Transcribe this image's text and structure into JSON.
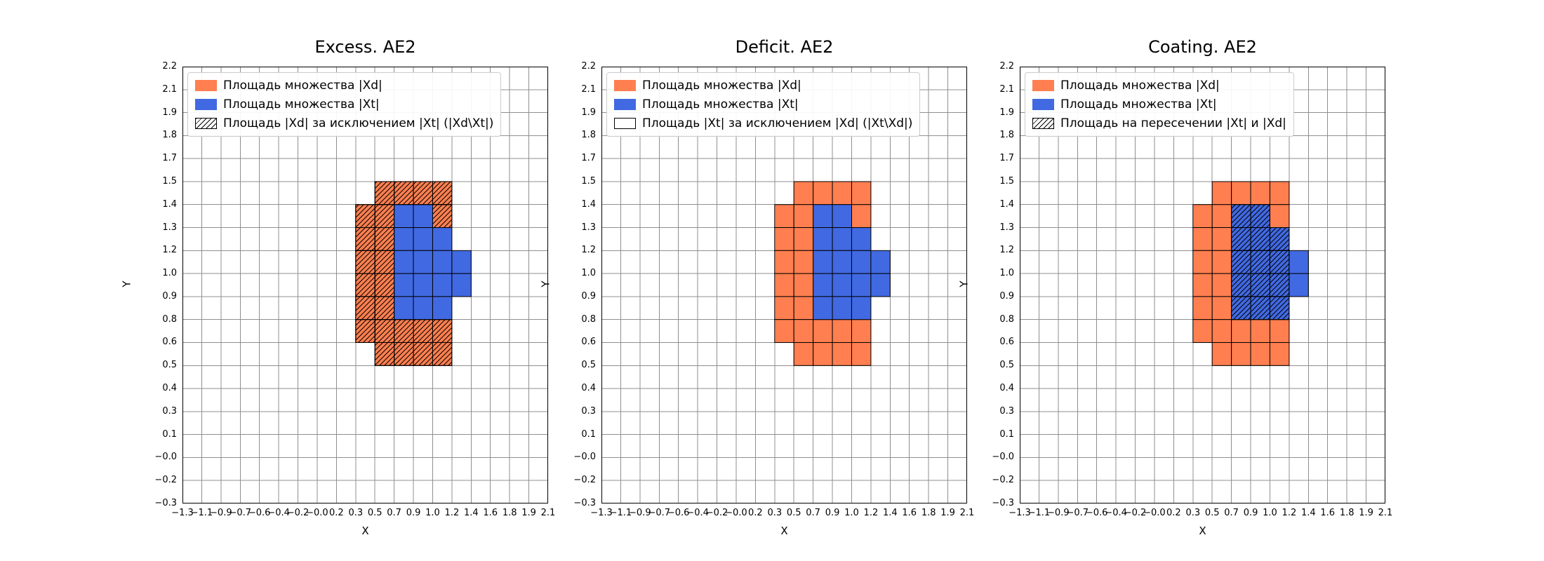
{
  "colors": {
    "set_xd": "#FF7F50",
    "set_xt": "#4169E1",
    "grid_line": "#8f8f8f",
    "cell_edge": "#000000",
    "hatch_line": "#000000",
    "legend_edge": "#cccccc",
    "background": "#ffffff"
  },
  "chart_data": [
    {
      "type": "heatmap",
      "title": "Excess. AE2",
      "xlabel": "X",
      "ylabel": "Y",
      "grid": true,
      "legend_position": "upper left",
      "x_ticks": [
        "−1.3",
        "−1.1",
        "−0.9",
        "−0.7",
        "−0.6",
        "−0.4",
        "−0.2",
        "−0.0",
        "0.2",
        "0.3",
        "0.5",
        "0.7",
        "0.9",
        "1.0",
        "1.2",
        "1.4",
        "1.6",
        "1.8",
        "1.9",
        "2.1"
      ],
      "y_ticks": [
        "2.2",
        "2.1",
        "1.9",
        "1.8",
        "1.7",
        "1.5",
        "1.4",
        "1.3",
        "1.2",
        "1.0",
        "0.9",
        "0.8",
        "0.6",
        "0.5",
        "0.4",
        "0.3",
        "0.1",
        "−0.0",
        "−0.2",
        "−0.3"
      ],
      "legend": [
        {
          "label": "Площадь множества |Xd|",
          "swatch": "orange"
        },
        {
          "label": "Площадь множества  |Xt|",
          "swatch": "blue"
        },
        {
          "label": "Площадь |Xd| за исключением |Xt| (|Xd\\Xt|)",
          "swatch": "hatch"
        }
      ],
      "cells": {
        "xd_orange": [
          [
            10,
            5
          ],
          [
            11,
            5
          ],
          [
            12,
            5
          ],
          [
            13,
            5
          ],
          [
            9,
            6
          ],
          [
            10,
            6
          ],
          [
            13,
            6
          ],
          [
            9,
            7
          ],
          [
            10,
            7
          ],
          [
            9,
            8
          ],
          [
            10,
            8
          ],
          [
            9,
            9
          ],
          [
            10,
            9
          ],
          [
            9,
            10
          ],
          [
            10,
            10
          ],
          [
            9,
            11
          ],
          [
            10,
            11
          ],
          [
            11,
            11
          ],
          [
            12,
            11
          ],
          [
            13,
            11
          ],
          [
            10,
            12
          ],
          [
            11,
            12
          ],
          [
            12,
            12
          ],
          [
            13,
            12
          ]
        ],
        "xt_blue": [
          [
            11,
            6
          ],
          [
            12,
            6
          ],
          [
            11,
            7
          ],
          [
            12,
            7
          ],
          [
            13,
            7
          ],
          [
            11,
            8
          ],
          [
            12,
            8
          ],
          [
            13,
            8
          ],
          [
            14,
            8
          ],
          [
            11,
            9
          ],
          [
            12,
            9
          ],
          [
            13,
            9
          ],
          [
            14,
            9
          ],
          [
            11,
            10
          ],
          [
            12,
            10
          ],
          [
            13,
            10
          ]
        ],
        "hatched": [
          [
            10,
            5
          ],
          [
            11,
            5
          ],
          [
            12,
            5
          ],
          [
            13,
            5
          ],
          [
            9,
            6
          ],
          [
            10,
            6
          ],
          [
            13,
            6
          ],
          [
            9,
            7
          ],
          [
            10,
            7
          ],
          [
            9,
            8
          ],
          [
            10,
            8
          ],
          [
            9,
            9
          ],
          [
            10,
            9
          ],
          [
            9,
            10
          ],
          [
            10,
            10
          ],
          [
            9,
            11
          ],
          [
            10,
            11
          ],
          [
            11,
            11
          ],
          [
            12,
            11
          ],
          [
            13,
            11
          ],
          [
            10,
            12
          ],
          [
            11,
            12
          ],
          [
            12,
            12
          ],
          [
            13,
            12
          ]
        ]
      }
    },
    {
      "type": "heatmap",
      "title": "Deficit. AE2",
      "xlabel": "X",
      "ylabel": "Y",
      "grid": true,
      "legend_position": "upper left",
      "x_ticks": [
        "−1.3",
        "−1.1",
        "−0.9",
        "−0.7",
        "−0.6",
        "−0.4",
        "−0.2",
        "−0.0",
        "0.2",
        "0.3",
        "0.5",
        "0.7",
        "0.9",
        "1.0",
        "1.2",
        "1.4",
        "1.6",
        "1.8",
        "1.9",
        "2.1"
      ],
      "y_ticks": [
        "2.2",
        "2.1",
        "1.9",
        "1.8",
        "1.7",
        "1.5",
        "1.4",
        "1.3",
        "1.2",
        "1.0",
        "0.9",
        "0.8",
        "0.6",
        "0.5",
        "0.4",
        "0.3",
        "0.1",
        "−0.0",
        "−0.2",
        "−0.3"
      ],
      "legend": [
        {
          "label": "Площадь множества |Xd|",
          "swatch": "orange"
        },
        {
          "label": "Площадь множества  |Xt|",
          "swatch": "blue"
        },
        {
          "label": "Площадь |Xt| за исключением |Xd| (|Xt\\Xd|)",
          "swatch": "plain"
        }
      ],
      "cells": {
        "xd_orange": [
          [
            10,
            5
          ],
          [
            11,
            5
          ],
          [
            12,
            5
          ],
          [
            13,
            5
          ],
          [
            9,
            6
          ],
          [
            10,
            6
          ],
          [
            13,
            6
          ],
          [
            9,
            7
          ],
          [
            10,
            7
          ],
          [
            9,
            8
          ],
          [
            10,
            8
          ],
          [
            9,
            9
          ],
          [
            10,
            9
          ],
          [
            9,
            10
          ],
          [
            10,
            10
          ],
          [
            9,
            11
          ],
          [
            10,
            11
          ],
          [
            11,
            11
          ],
          [
            12,
            11
          ],
          [
            13,
            11
          ],
          [
            10,
            12
          ],
          [
            11,
            12
          ],
          [
            12,
            12
          ],
          [
            13,
            12
          ]
        ],
        "xt_blue": [
          [
            11,
            6
          ],
          [
            12,
            6
          ],
          [
            11,
            7
          ],
          [
            12,
            7
          ],
          [
            13,
            7
          ],
          [
            11,
            8
          ],
          [
            12,
            8
          ],
          [
            13,
            8
          ],
          [
            14,
            8
          ],
          [
            11,
            9
          ],
          [
            12,
            9
          ],
          [
            13,
            9
          ],
          [
            14,
            9
          ],
          [
            11,
            10
          ],
          [
            12,
            10
          ],
          [
            13,
            10
          ]
        ],
        "hatched": []
      }
    },
    {
      "type": "heatmap",
      "title": "Coating. AE2",
      "xlabel": "X",
      "ylabel": "Y",
      "grid": true,
      "legend_position": "upper left",
      "x_ticks": [
        "−1.3",
        "−1.1",
        "−0.9",
        "−0.7",
        "−0.6",
        "−0.4",
        "−0.2",
        "−0.0",
        "0.2",
        "0.3",
        "0.5",
        "0.7",
        "0.9",
        "1.0",
        "1.2",
        "1.4",
        "1.6",
        "1.8",
        "1.9",
        "2.1"
      ],
      "y_ticks": [
        "2.2",
        "2.1",
        "1.9",
        "1.8",
        "1.7",
        "1.5",
        "1.4",
        "1.3",
        "1.2",
        "1.0",
        "0.9",
        "0.8",
        "0.6",
        "0.5",
        "0.4",
        "0.3",
        "0.1",
        "−0.0",
        "−0.2",
        "−0.3"
      ],
      "legend": [
        {
          "label": "Площадь множества |Xd|",
          "swatch": "orange"
        },
        {
          "label": "Площадь множества  |Xt|",
          "swatch": "blue"
        },
        {
          "label": "Площадь на пересечении |Xt| и |Xd|",
          "swatch": "hatch"
        }
      ],
      "cells": {
        "xd_orange": [
          [
            10,
            5
          ],
          [
            11,
            5
          ],
          [
            12,
            5
          ],
          [
            13,
            5
          ],
          [
            9,
            6
          ],
          [
            10,
            6
          ],
          [
            13,
            6
          ],
          [
            9,
            7
          ],
          [
            10,
            7
          ],
          [
            9,
            8
          ],
          [
            10,
            8
          ],
          [
            9,
            9
          ],
          [
            10,
            9
          ],
          [
            9,
            10
          ],
          [
            10,
            10
          ],
          [
            9,
            11
          ],
          [
            10,
            11
          ],
          [
            11,
            11
          ],
          [
            12,
            11
          ],
          [
            13,
            11
          ],
          [
            10,
            12
          ],
          [
            11,
            12
          ],
          [
            12,
            12
          ],
          [
            13,
            12
          ]
        ],
        "xt_blue": [
          [
            11,
            6
          ],
          [
            12,
            6
          ],
          [
            11,
            7
          ],
          [
            12,
            7
          ],
          [
            13,
            7
          ],
          [
            11,
            8
          ],
          [
            12,
            8
          ],
          [
            13,
            8
          ],
          [
            14,
            8
          ],
          [
            11,
            9
          ],
          [
            12,
            9
          ],
          [
            13,
            9
          ],
          [
            14,
            9
          ],
          [
            11,
            10
          ],
          [
            12,
            10
          ],
          [
            13,
            10
          ]
        ],
        "hatched": [
          [
            11,
            6
          ],
          [
            12,
            6
          ],
          [
            11,
            7
          ],
          [
            12,
            7
          ],
          [
            13,
            7
          ],
          [
            11,
            8
          ],
          [
            12,
            8
          ],
          [
            13,
            8
          ],
          [
            11,
            9
          ],
          [
            12,
            9
          ],
          [
            13,
            9
          ],
          [
            11,
            10
          ],
          [
            12,
            10
          ],
          [
            13,
            10
          ]
        ]
      }
    }
  ]
}
